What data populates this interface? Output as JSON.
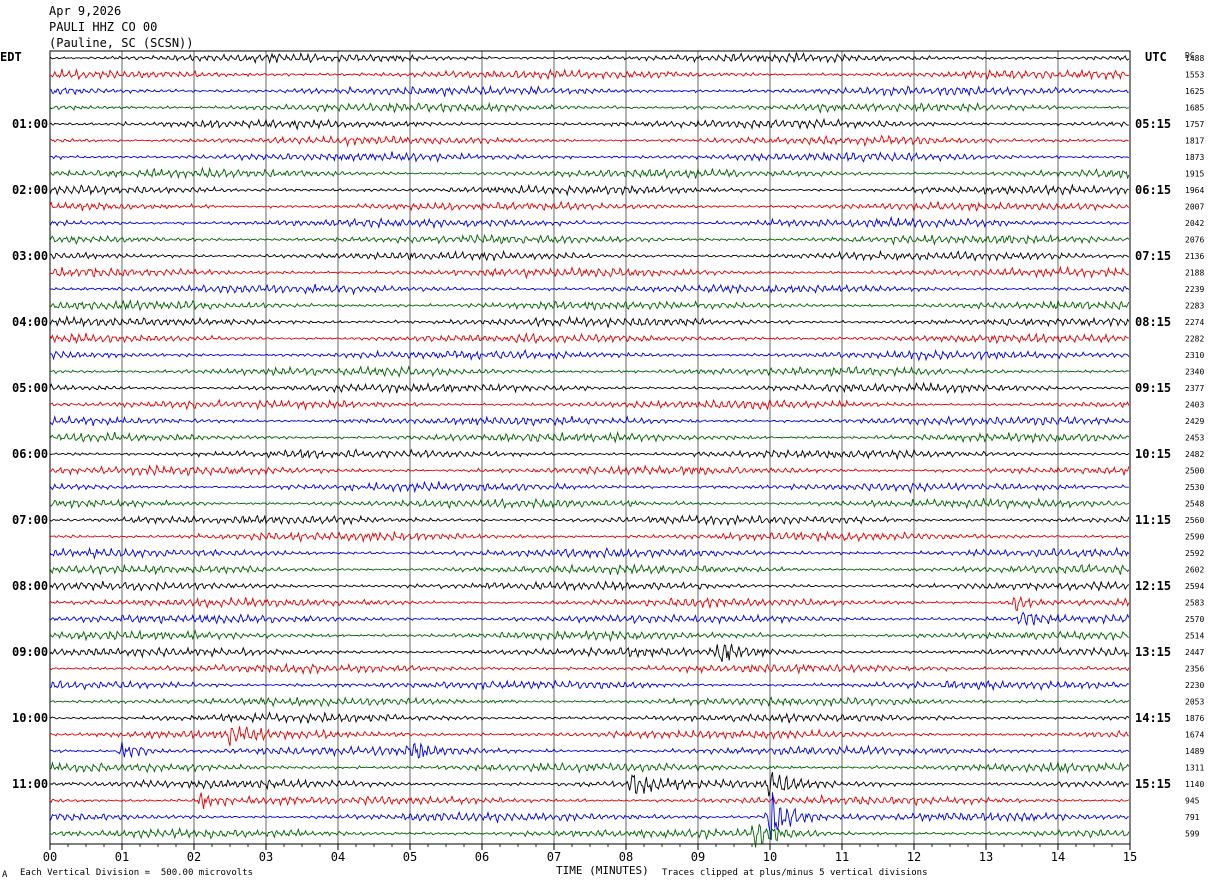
{
  "header": {
    "date": "Apr 9,2026",
    "station": "PAULI HHZ CO 00",
    "location": "(Pauline, SC (SCSN))"
  },
  "left_axis_title": "EDT",
  "right_axis_title": "UTC",
  "counts_title": "DC",
  "footer": {
    "left_mark": "A",
    "scale_note": "Each Vertical Division =  500.00 microvolts",
    "xlabel": "TIME (MINUTES)",
    "clip_note": "Traces clipped at plus/minus 5 vertical divisions"
  },
  "chart_data": {
    "type": "line",
    "title": "",
    "xlabel": "TIME (MINUTES)",
    "x_ticks": [
      "00",
      "01",
      "02",
      "03",
      "04",
      "05",
      "06",
      "07",
      "08",
      "09",
      "10",
      "11",
      "12",
      "13",
      "14",
      "15"
    ],
    "xlim": [
      0,
      15
    ],
    "left_ticks": [
      "01:00",
      "02:00",
      "03:00",
      "04:00",
      "05:00",
      "06:00",
      "07:00",
      "08:00",
      "09:00",
      "10:00",
      "11:00"
    ],
    "right_ticks": [
      "05:15",
      "06:15",
      "07:15",
      "08:15",
      "09:15",
      "10:15",
      "11:15",
      "12:15",
      "13:15",
      "14:15",
      "15:15"
    ],
    "trace_colors": [
      "#000000",
      "#e00000",
      "#0000e0",
      "#006400"
    ],
    "trace_count": 48,
    "trace_counts": [
      "1488",
      "1553",
      "1625",
      "1685",
      "1757",
      "1817",
      "1873",
      "1915",
      "1964",
      "2007",
      "2042",
      "2076",
      "2136",
      "2188",
      "2239",
      "2283",
      "2274",
      "2282",
      "2310",
      "2340",
      "2377",
      "2403",
      "2429",
      "2453",
      "2482",
      "2500",
      "2530",
      "2548",
      "2560",
      "2590",
      "2592",
      "2602",
      "2594",
      "2583",
      "2570",
      "2514",
      "2447",
      "2356",
      "2230",
      "2053",
      "1876",
      "1674",
      "1489",
      "1311",
      "1140",
      "945",
      "791",
      "599"
    ],
    "events": [
      {
        "trace": 46,
        "minute": 10.0,
        "amplitude": 3.0
      },
      {
        "trace": 47,
        "minute": 9.8,
        "amplitude": 1.4
      },
      {
        "trace": 44,
        "minute": 8.1,
        "amplitude": 1.2
      },
      {
        "trace": 44,
        "minute": 10.0,
        "amplitude": 1.1
      },
      {
        "trace": 36,
        "minute": 9.3,
        "amplitude": 1.1
      },
      {
        "trace": 34,
        "minute": 13.5,
        "amplitude": 1.0
      },
      {
        "trace": 33,
        "minute": 13.4,
        "amplitude": 0.9
      },
      {
        "trace": 42,
        "minute": 1.0,
        "amplitude": 0.9
      },
      {
        "trace": 42,
        "minute": 5.0,
        "amplitude": 0.9
      },
      {
        "trace": 41,
        "minute": 2.5,
        "amplitude": 0.8
      },
      {
        "trace": 45,
        "minute": 2.1,
        "amplitude": 0.8
      }
    ],
    "grid": true
  }
}
